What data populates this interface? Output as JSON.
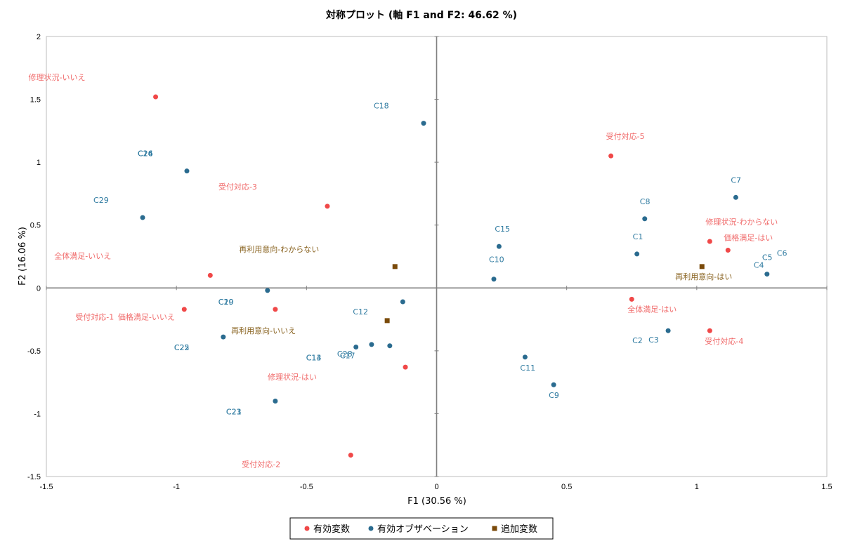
{
  "chart_data": {
    "type": "scatter",
    "title": "対称プロット (軸 F1 and F2: 46.62 %)",
    "xlabel": "F1 (30.56 %)",
    "ylabel": "F2 (16.06 %)",
    "xlim": [
      -1.5,
      1.5
    ],
    "ylim": [
      -1.5,
      2
    ],
    "xticks": [
      -1.5,
      -1,
      -0.5,
      0,
      0.5,
      1,
      1.5
    ],
    "yticks": [
      -1.5,
      -1,
      -0.5,
      0,
      0.5,
      1,
      1.5,
      2
    ],
    "xtick_labels": [
      "-1.5",
      "-1",
      "-0.5",
      "0",
      "0.5",
      "1",
      "1.5"
    ],
    "ytick_labels": [
      "-1.5",
      "-1",
      "-0.5",
      "0",
      "0.5",
      "1",
      "1.5",
      "2"
    ],
    "grid": false,
    "legend_position": "bottom",
    "series": [
      {
        "name": "有効変数",
        "color": "#f04848",
        "label_color": "#f06a6a",
        "marker": "circle",
        "points": [
          {
            "label": "修理状況-いいえ",
            "x": -1.08,
            "y": 1.52
          },
          {
            "label": "受付対応-3",
            "x": -0.42,
            "y": 0.65
          },
          {
            "label": "全体満足-いいえ",
            "x": -0.87,
            "y": 0.1
          },
          {
            "label": "受付対応-1",
            "x": -0.97,
            "y": -0.17
          },
          {
            "label": "価格満足-いいえ",
            "x": -0.62,
            "y": -0.17
          },
          {
            "label": "修理状況-はい",
            "x": -0.12,
            "y": -0.63
          },
          {
            "label": "受付対応-2",
            "x": -0.33,
            "y": -1.33
          },
          {
            "label": "受付対応-5",
            "x": 0.67,
            "y": 1.05
          },
          {
            "label": "修理状況-わからない",
            "x": 1.05,
            "y": 0.37
          },
          {
            "label": "価格満足-はい",
            "x": 1.12,
            "y": 0.3
          },
          {
            "label": "全体満足-はい",
            "x": 0.75,
            "y": -0.09
          },
          {
            "label": "受付対応-4",
            "x": 1.05,
            "y": -0.34
          }
        ]
      },
      {
        "name": "有効オブザベーション",
        "color": "#2a6b8f",
        "label_color": "#2e7aa0",
        "marker": "circle",
        "points": [
          {
            "label": "C18",
            "x": -0.05,
            "y": 1.31
          },
          {
            "label": "C26",
            "x": -0.96,
            "y": 0.93
          },
          {
            "label": "C29",
            "x": -1.13,
            "y": 0.56
          },
          {
            "label": "C20",
            "x": -0.65,
            "y": -0.02
          },
          {
            "label": "C12",
            "x": -0.13,
            "y": -0.11
          },
          {
            "label": "C25",
            "x": -0.82,
            "y": -0.39
          },
          {
            "label": "C13",
            "x": -0.31,
            "y": -0.47
          },
          {
            "label": "C28",
            "x": -0.25,
            "y": -0.45
          },
          {
            "label": "C17",
            "x": -0.18,
            "y": -0.46
          },
          {
            "label": "C23",
            "x": -0.62,
            "y": -0.9
          },
          {
            "label": "C15",
            "x": 0.24,
            "y": 0.33
          },
          {
            "label": "C10",
            "x": 0.22,
            "y": 0.07
          },
          {
            "label": "C11",
            "x": 0.34,
            "y": -0.55
          },
          {
            "label": "C9",
            "x": 0.45,
            "y": -0.77
          },
          {
            "label": "C7",
            "x": 1.15,
            "y": 0.72
          },
          {
            "label": "C8",
            "x": 0.8,
            "y": 0.55
          },
          {
            "label": "C1",
            "x": 0.77,
            "y": 0.27
          },
          {
            "label": "C4",
            "x": 1.27,
            "y": 0.11
          },
          {
            "label": "C3",
            "x": 0.89,
            "y": -0.34
          }
        ]
      },
      {
        "name": "追加変数",
        "color": "#7a4a0a",
        "label_color": "#8a6422",
        "marker": "square",
        "points": [
          {
            "label": "再利用意向-わからない",
            "x": -0.16,
            "y": 0.17
          },
          {
            "label": "再利用意向-いいえ",
            "x": -0.19,
            "y": -0.26
          },
          {
            "label": "再利用意向-はい",
            "x": 1.02,
            "y": 0.17
          }
        ]
      }
    ],
    "extra_labels": [
      {
        "text": "C16",
        "series": 1
      },
      {
        "text": "C24",
        "series": 1
      },
      {
        "text": "C19",
        "series": 1
      },
      {
        "text": "C22",
        "series": 1
      },
      {
        "text": "C14",
        "series": 1
      },
      {
        "text": "C21",
        "series": 1
      },
      {
        "text": "C5",
        "series": 1
      },
      {
        "text": "C6",
        "series": 1
      },
      {
        "text": "C2",
        "series": 1
      }
    ]
  }
}
